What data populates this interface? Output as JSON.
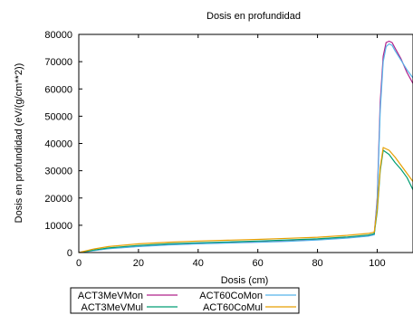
{
  "chart_data": {
    "type": "line",
    "title": "Dosis en profundidad",
    "xlabel": "Dosis (cm)",
    "ylabel": "Dosis en profundidad (eV/(g/cm**2))",
    "xlim": [
      0,
      112
    ],
    "ylim": [
      0,
      80000
    ],
    "x_ticks": [
      "0",
      "20",
      "40",
      "60",
      "80",
      "100"
    ],
    "y_ticks": [
      "0",
      "10000",
      "20000",
      "30000",
      "40000",
      "50000",
      "60000",
      "70000",
      "80000"
    ],
    "grid": false,
    "legend_position": "bottom-left",
    "series": [
      {
        "name": "ACT3MeVMon",
        "color": "#b0208a",
        "x": [
          0,
          5,
          10,
          20,
          30,
          40,
          50,
          60,
          70,
          80,
          90,
          97,
          99,
          100,
          101,
          102,
          103,
          104,
          105,
          106,
          108,
          110,
          112
        ],
        "y": [
          0,
          800,
          1500,
          2300,
          2900,
          3300,
          3600,
          3900,
          4200,
          4700,
          5400,
          6100,
          6600,
          20000,
          55000,
          72000,
          77000,
          77500,
          77000,
          75000,
          71000,
          66000,
          62000
        ]
      },
      {
        "name": "ACT60CoMon",
        "color": "#56b4e9",
        "x": [
          0,
          5,
          10,
          20,
          30,
          40,
          50,
          60,
          70,
          80,
          90,
          97,
          99,
          100,
          101,
          102,
          103,
          104,
          105,
          106,
          108,
          110,
          112
        ],
        "y": [
          0,
          700,
          1400,
          2200,
          2800,
          3200,
          3500,
          3800,
          4100,
          4600,
          5300,
          6000,
          6500,
          19000,
          52000,
          70000,
          75500,
          76500,
          76000,
          74000,
          70500,
          67000,
          64000
        ]
      },
      {
        "name": "ACT3MeVMul",
        "color": "#009e73",
        "x": [
          0,
          5,
          10,
          20,
          30,
          40,
          50,
          60,
          70,
          80,
          90,
          97,
          99,
          100,
          101,
          102,
          104,
          106,
          108,
          110,
          112
        ],
        "y": [
          0,
          900,
          1700,
          2600,
          3200,
          3600,
          3900,
          4200,
          4600,
          5000,
          5700,
          6400,
          6900,
          15000,
          30000,
          37500,
          36000,
          33000,
          30500,
          27500,
          23000
        ]
      },
      {
        "name": "ACT60CoMul",
        "color": "#e69f00",
        "x": [
          0,
          5,
          10,
          20,
          30,
          40,
          50,
          60,
          70,
          80,
          90,
          97,
          99,
          100,
          101,
          102,
          104,
          106,
          108,
          110,
          112
        ],
        "y": [
          0,
          1300,
          2200,
          3200,
          3800,
          4200,
          4500,
          4800,
          5200,
          5600,
          6300,
          7000,
          7500,
          16000,
          31000,
          38500,
          37500,
          35000,
          32000,
          29000,
          26000
        ]
      }
    ]
  }
}
